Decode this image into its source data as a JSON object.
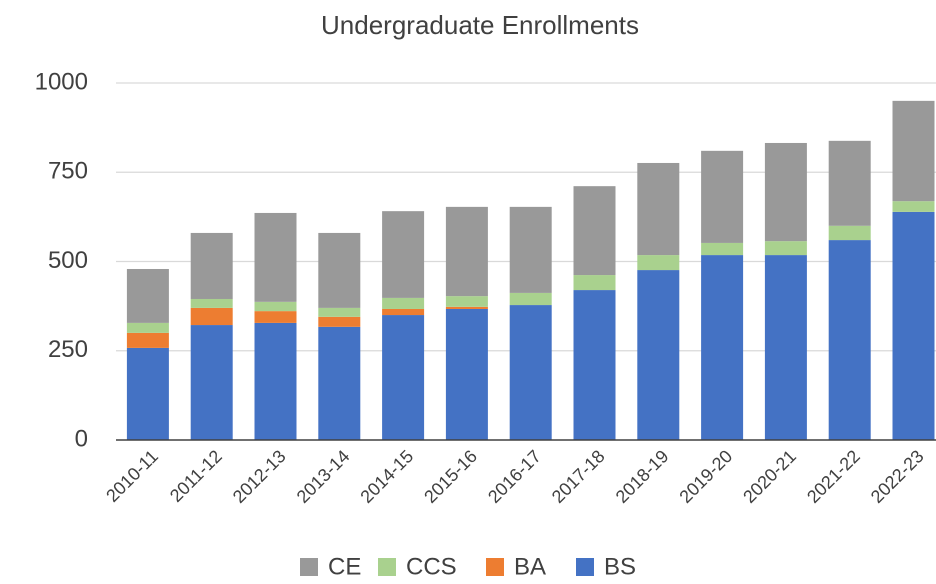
{
  "chart_data": {
    "type": "stacked_bar",
    "title": "Undergraduate Enrollments",
    "categories": [
      "2010-11",
      "2011-12",
      "2012-13",
      "2013-14",
      "2014-15",
      "2015-16",
      "2016-17",
      "2017-18",
      "2018-19",
      "2019-20",
      "2020-21",
      "2021-22",
      "2022-23"
    ],
    "series": [
      {
        "name": "BS",
        "color": "#4472c4",
        "values": [
          258,
          322,
          328,
          317,
          350,
          367,
          378,
          420,
          476,
          518,
          518,
          560,
          639
        ]
      },
      {
        "name": "BA",
        "color": "#ed7d31",
        "values": [
          42,
          48,
          33,
          28,
          17,
          6,
          0,
          0,
          0,
          0,
          0,
          0,
          0
        ]
      },
      {
        "name": "CCS",
        "color": "#a9d18e",
        "values": [
          28,
          25,
          26,
          25,
          31,
          30,
          34,
          42,
          42,
          34,
          39,
          40,
          30
        ]
      },
      {
        "name": "CE",
        "color": "#999999",
        "values": [
          151,
          185,
          249,
          210,
          243,
          250,
          241,
          249,
          258,
          258,
          275,
          238,
          281
        ]
      }
    ],
    "ylim": [
      0,
      1000
    ],
    "yticks": [
      0,
      250,
      500,
      750,
      1000
    ],
    "grid": true
  }
}
